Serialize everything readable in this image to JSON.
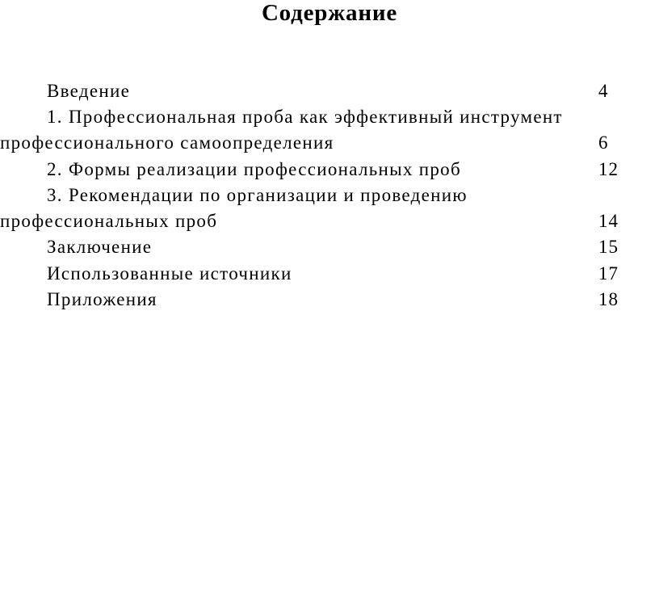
{
  "document": {
    "title": "Содержание",
    "text_color": "#000000",
    "background_color": "#ffffff"
  },
  "toc": {
    "entries": [
      {
        "lines": [
          "Введение"
        ],
        "page": "4"
      },
      {
        "lines": [
          "1. Профессиональная проба как эффективный инструмент",
          "профессионального самоопределения"
        ],
        "page": "6"
      },
      {
        "lines": [
          "2. Формы реализации профессиональных проб"
        ],
        "page": "12"
      },
      {
        "lines": [
          "3. Рекомендации по организации и проведению",
          "профессиональных проб"
        ],
        "page": "14"
      },
      {
        "lines": [
          "Заключение"
        ],
        "page": "15"
      },
      {
        "lines": [
          "Использованные источники"
        ],
        "page": "17"
      },
      {
        "lines": [
          "Приложения"
        ],
        "page": "18"
      }
    ]
  }
}
